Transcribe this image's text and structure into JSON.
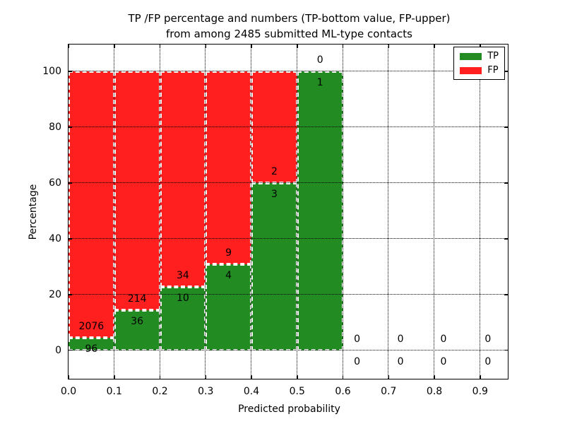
{
  "title": {
    "line1": "TP /FP percentage and numbers (TP-bottom value, FP-upper)",
    "line2": "from among 2485 submitted ML-type contacts"
  },
  "chart_data": {
    "type": "bar",
    "variant": "stacked-percentage-histogram",
    "title": "TP /FP percentage and numbers (TP-bottom value, FP-upper) from among 2485 submitted ML-type contacts",
    "xlabel": "Predicted probability",
    "ylabel": "Percentage",
    "total_contacts": 2485,
    "xlim": [
      0,
      0.9605
    ],
    "ylim": [
      -10.2,
      109.6
    ],
    "grid": true,
    "legend_position": "upper right",
    "bin_width": 0.1,
    "xticks": [
      {
        "v": 0.0,
        "label": "0.0"
      },
      {
        "v": 0.1,
        "label": "0.1"
      },
      {
        "v": 0.2,
        "label": "0.2"
      },
      {
        "v": 0.3,
        "label": "0.3"
      },
      {
        "v": 0.4,
        "label": "0.4"
      },
      {
        "v": 0.5,
        "label": "0.5"
      },
      {
        "v": 0.6,
        "label": "0.6"
      },
      {
        "v": 0.7,
        "label": "0.7"
      },
      {
        "v": 0.8,
        "label": "0.8"
      },
      {
        "v": 0.9,
        "label": "0.9"
      }
    ],
    "yticks": [
      {
        "v": 0,
        "label": "0"
      },
      {
        "v": 20,
        "label": "20"
      },
      {
        "v": 40,
        "label": "40"
      },
      {
        "v": 60,
        "label": "60"
      },
      {
        "v": 80,
        "label": "80"
      },
      {
        "v": 100,
        "label": "100"
      }
    ],
    "series": [
      {
        "name": "TP",
        "color": "#228B22",
        "counts": [
          96,
          36,
          10,
          4,
          3,
          1,
          0,
          0,
          0,
          0
        ]
      },
      {
        "name": "FP",
        "color": "#FF1F1F",
        "counts": [
          2076,
          214,
          34,
          9,
          2,
          0,
          0,
          0,
          0,
          0
        ]
      }
    ],
    "bins": [
      {
        "x0": 0.0,
        "x1": 0.1,
        "tp": 96,
        "fp": 2076,
        "tp_pct": 4.4
      },
      {
        "x0": 0.1,
        "x1": 0.2,
        "tp": 36,
        "fp": 214,
        "tp_pct": 14.4
      },
      {
        "x0": 0.2,
        "x1": 0.3,
        "tp": 10,
        "fp": 34,
        "tp_pct": 22.7
      },
      {
        "x0": 0.3,
        "x1": 0.4,
        "tp": 4,
        "fp": 9,
        "tp_pct": 30.8
      },
      {
        "x0": 0.4,
        "x1": 0.5,
        "tp": 3,
        "fp": 2,
        "tp_pct": 60.0
      },
      {
        "x0": 0.5,
        "x1": 0.6,
        "tp": 1,
        "fp": 0,
        "tp_pct": 100.0
      },
      {
        "x0": 0.6,
        "x1": 0.7,
        "tp": 0,
        "fp": 0,
        "tp_pct": null
      },
      {
        "x0": 0.7,
        "x1": 0.8,
        "tp": 0,
        "fp": 0,
        "tp_pct": null
      },
      {
        "x0": 0.8,
        "x1": 0.9,
        "tp": 0,
        "fp": 0,
        "tp_pct": null
      },
      {
        "x0": 0.9,
        "x1": 1.0,
        "tp": 0,
        "fp": 0,
        "tp_pct": null
      }
    ],
    "label_x": [
      0.05,
      0.15,
      0.25,
      0.35,
      0.45,
      0.55,
      0.631,
      0.726,
      0.82,
      0.917
    ],
    "label_offset_pct": 4
  }
}
